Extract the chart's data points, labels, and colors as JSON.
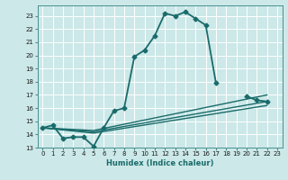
{
  "background_color": "#cce8e8",
  "grid_color": "#b0d4d4",
  "line_color": "#1a6b6b",
  "xlabel": "Humidex (Indice chaleur)",
  "xlim": [
    -0.5,
    23.5
  ],
  "ylim": [
    13,
    23.8
  ],
  "yticks": [
    13,
    14,
    15,
    16,
    17,
    18,
    19,
    20,
    21,
    22,
    23
  ],
  "xticks": [
    0,
    1,
    2,
    3,
    4,
    5,
    6,
    7,
    8,
    9,
    10,
    11,
    12,
    13,
    14,
    15,
    16,
    17,
    18,
    19,
    20,
    21,
    22,
    23
  ],
  "series": [
    {
      "x": [
        0,
        1,
        2,
        3,
        4,
        5,
        6,
        7,
        8,
        9,
        10,
        11,
        12,
        13,
        14,
        15,
        16,
        17,
        18,
        19,
        20,
        21,
        22
      ],
      "y": [
        14.5,
        14.7,
        13.7,
        13.8,
        13.8,
        13.1,
        14.5,
        15.8,
        16.0,
        19.9,
        20.4,
        21.5,
        23.2,
        23.0,
        23.3,
        22.8,
        22.3,
        17.9,
        null,
        null,
        16.9,
        16.6,
        16.5
      ],
      "marker": "D",
      "markersize": 2.5,
      "linewidth": 1.3
    },
    {
      "x": [
        0,
        5,
        22
      ],
      "y": [
        14.5,
        14.3,
        17.0
      ],
      "marker": null,
      "markersize": 0,
      "linewidth": 1.0
    },
    {
      "x": [
        0,
        5,
        22
      ],
      "y": [
        14.5,
        14.2,
        16.5
      ],
      "marker": null,
      "markersize": 0,
      "linewidth": 1.0
    },
    {
      "x": [
        0,
        5,
        22
      ],
      "y": [
        14.5,
        14.1,
        16.2
      ],
      "marker": null,
      "markersize": 0,
      "linewidth": 1.0
    }
  ]
}
